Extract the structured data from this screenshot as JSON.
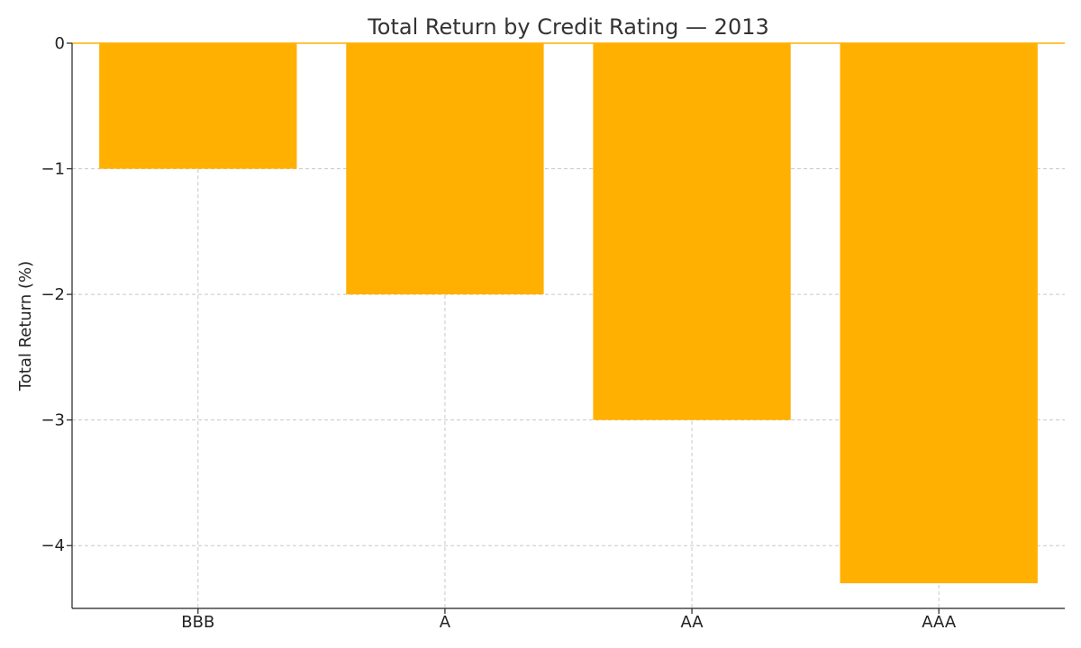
{
  "chart_data": {
    "type": "bar",
    "title": "Total Return by Credit Rating — 2013",
    "xlabel": "",
    "ylabel": "Total Return (%)",
    "categories": [
      "BBB",
      "A",
      "AA",
      "AAA"
    ],
    "values": [
      -1.0,
      -2.0,
      -3.0,
      -4.3
    ],
    "ylim": [
      -4.5,
      0
    ],
    "yticks": [
      0,
      -1,
      -2,
      -3,
      -4
    ],
    "ytick_labels": [
      "0",
      "−1",
      "−2",
      "−3",
      "−4"
    ],
    "grid": true,
    "bar_color": "#FFB000"
  }
}
